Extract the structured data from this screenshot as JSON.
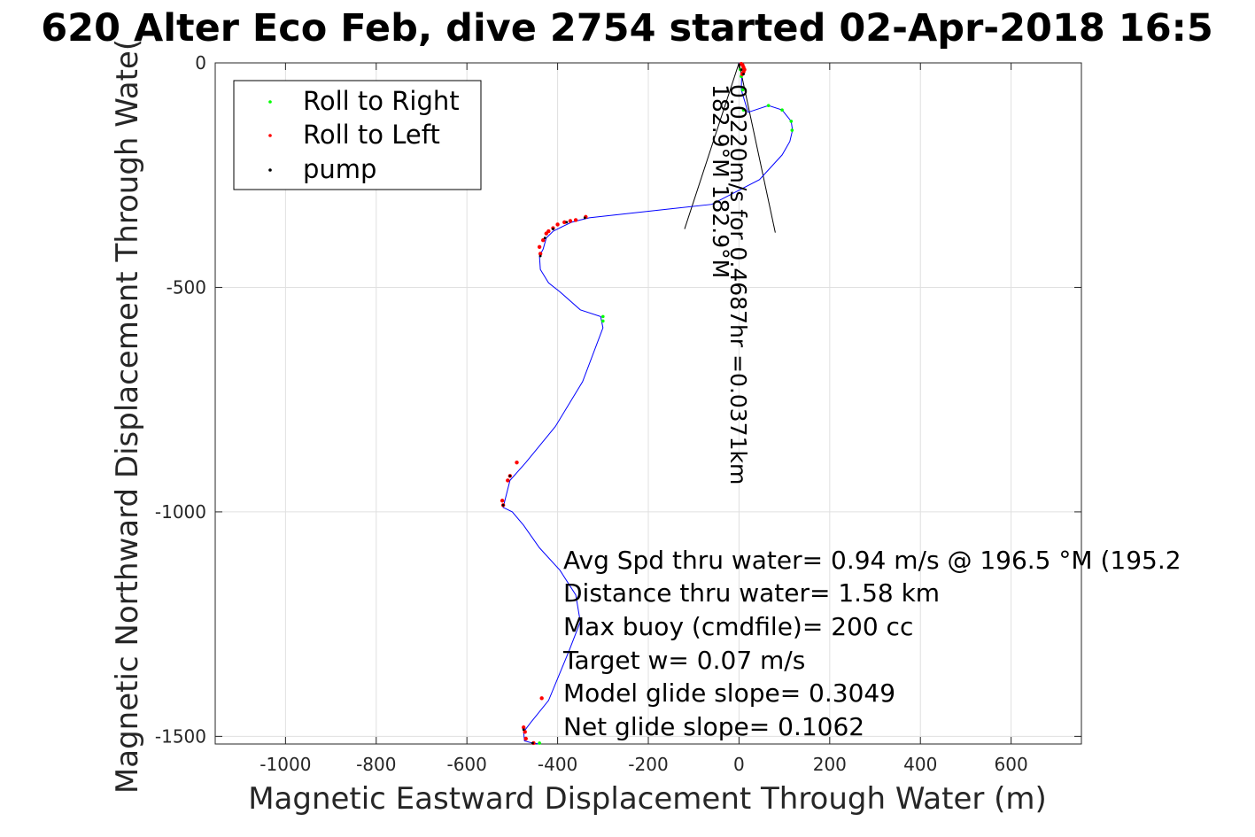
{
  "chart_data": {
    "type": "line",
    "title": "620 Alter Eco Feb, dive 2754 started 02-Apr-2018 16:5",
    "xlabel": "Magnetic Eastward Displacement Through Water (m)",
    "ylabel": "Magnetic Northward Displacement Through Wate(",
    "xlim": [
      -1155,
      755
    ],
    "ylim": [
      -1517,
      0
    ],
    "xticks": [
      -1000,
      -800,
      -600,
      -400,
      -200,
      0,
      200,
      400,
      600
    ],
    "yticks": [
      0,
      -500,
      -1000,
      -1500
    ],
    "grid": true,
    "legend_position": "top-left",
    "legend": [
      {
        "label": "Roll to Right",
        "color": "#00ff00"
      },
      {
        "label": "Roll to Left",
        "color": "#ff0000"
      },
      {
        "label": "pump",
        "color": "#000000"
      }
    ],
    "track": {
      "name": "track",
      "color": "#0000ff",
      "x": [
        0,
        8,
        10,
        6,
        5,
        20,
        65,
        95,
        115,
        118,
        112,
        95,
        45,
        -60,
        -330,
        -350,
        -370,
        -390,
        -410,
        -425,
        -432,
        -440,
        -438,
        -420,
        -395,
        -350,
        -305,
        -300,
        -345,
        -405,
        -470,
        -505,
        -520,
        -500,
        -475,
        -440,
        -395,
        -360,
        -350,
        -375,
        -420,
        -460,
        -475,
        -473,
        -455,
        -440
      ],
      "y": [
        0,
        -5,
        -10,
        -25,
        -60,
        -110,
        -95,
        -105,
        -130,
        -150,
        -175,
        -205,
        -260,
        -315,
        -345,
        -350,
        -355,
        -365,
        -375,
        -390,
        -415,
        -430,
        -460,
        -490,
        -510,
        -550,
        -565,
        -590,
        -710,
        -810,
        -890,
        -930,
        -990,
        -1000,
        -1030,
        -1080,
        -1130,
        -1185,
        -1245,
        -1310,
        -1420,
        -1470,
        -1490,
        -1510,
        -1515,
        -1517
      ]
    },
    "roll_right_points": {
      "name": "Roll to Right",
      "x": [
        3,
        5,
        8,
        10,
        65,
        95,
        115,
        117,
        -300,
        -300,
        -440
      ],
      "y": [
        -15,
        -30,
        -60,
        -105,
        -95,
        -105,
        -130,
        -150,
        -565,
        -575,
        -1515
      ]
    },
    "roll_left_points": {
      "name": "Roll to Left",
      "x": [
        5,
        8,
        10,
        12,
        10,
        7,
        -338,
        -360,
        -372,
        -385,
        -400,
        -410,
        -420,
        -425,
        -432,
        -440,
        -438,
        -490,
        -505,
        -510,
        -522,
        -520,
        -435,
        -475,
        -472,
        -470,
        -453
      ],
      "y": [
        -2,
        -5,
        -10,
        -15,
        -20,
        -25,
        -343,
        -350,
        -352,
        -355,
        -360,
        -368,
        -375,
        -380,
        -395,
        -410,
        -425,
        -890,
        -920,
        -930,
        -975,
        -985,
        -1415,
        -1480,
        -1490,
        -1505,
        -1515
      ]
    },
    "pump_points": {
      "name": "pump",
      "x": [
        0,
        5,
        10,
        -340,
        -380,
        -410,
        -428,
        -438,
        -505,
        -520,
        -475,
        -455
      ],
      "y": [
        -5,
        -15,
        -25,
        -345,
        -355,
        -370,
        -390,
        -430,
        -920,
        -985,
        -1485,
        -1515
      ]
    },
    "current_vector": {
      "name": "current",
      "x": [
        0,
        -120,
        0,
        80
      ],
      "y": [
        0,
        -370,
        0,
        -378
      ],
      "label_1": "0.0220m/s for 0.4687hr =0.0371km",
      "label_2": "182.9°M 182.9°M"
    },
    "annotations": [
      "Avg Spd thru water=  0.94 m/s @ 196.5 °M (195.2",
      "Distance thru water=  1.58 km",
      "Max buoy (cmdfile)= 200 cc",
      "Target w= 0.07 m/s",
      "Model glide slope= 0.3049",
      "Net glide slope= 0.1062"
    ]
  }
}
